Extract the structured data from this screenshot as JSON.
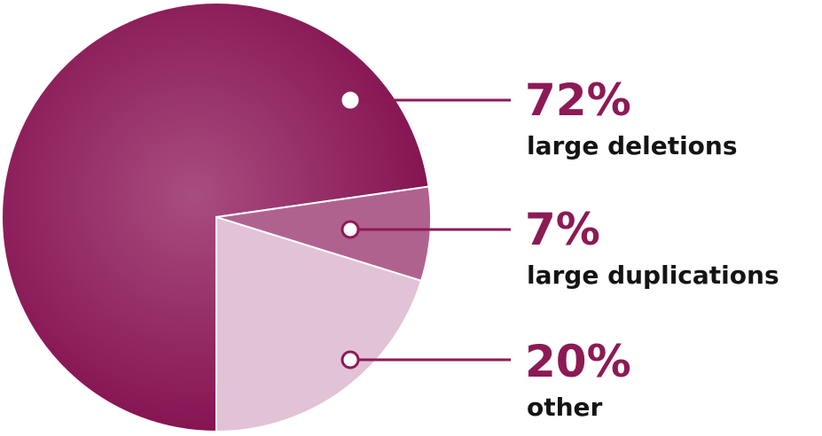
{
  "chart_data": {
    "type": "pie",
    "slices": [
      {
        "label": "large deletions",
        "value": 72,
        "value_label": "72%",
        "color": "#8c1a55"
      },
      {
        "label": "large duplications",
        "value": 7,
        "value_label": "7%",
        "color": "#b0628f"
      },
      {
        "label": "other",
        "value": 20,
        "value_label": "20%",
        "color": "#e2c2d6"
      }
    ],
    "legend_placement": "right",
    "accent_color": "#8c1a55",
    "label_color": "#141414"
  }
}
